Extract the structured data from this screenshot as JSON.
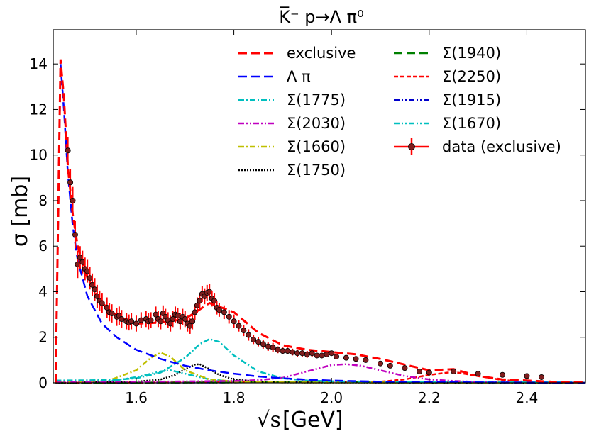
{
  "chart_data": {
    "type": "line",
    "title": "K̅⁻ p→Λ π⁰",
    "xlabel": "[GeV]",
    "xlabel_sqrt": "√s",
    "ylabel": "σ [mb]",
    "xlim": [
      1.43,
      2.52
    ],
    "ylim": [
      0,
      15.5
    ],
    "xticks": [
      1.6,
      1.8,
      2.0,
      2.2,
      2.4
    ],
    "yticks": [
      0,
      2,
      4,
      6,
      8,
      10,
      12,
      14
    ],
    "legend_position": "top-right",
    "series": [
      {
        "key": "exclusive",
        "name": "exclusive",
        "color": "#ff0000",
        "style": "dashed",
        "x": [
          1.435,
          1.445,
          1.452,
          1.46,
          1.47,
          1.48,
          1.5,
          1.53,
          1.56,
          1.6,
          1.65,
          1.7,
          1.75,
          1.8,
          1.85,
          1.9,
          1.95,
          2.0,
          2.05,
          2.1,
          2.15,
          2.2,
          2.25,
          2.3,
          2.35,
          2.4,
          2.45,
          2.52
        ],
        "y": [
          0,
          14.2,
          12.5,
          9.5,
          7.4,
          6.0,
          4.6,
          3.5,
          2.95,
          2.6,
          2.65,
          2.8,
          3.5,
          3.1,
          2.2,
          1.65,
          1.45,
          1.35,
          1.25,
          1.05,
          0.8,
          0.55,
          0.6,
          0.3,
          0.15,
          0.1,
          0.05,
          0.03
        ]
      },
      {
        "key": "lambda_pi",
        "name": "Λ π",
        "color": "#0000ff",
        "style": "dashed",
        "x": [
          1.435,
          1.445,
          1.452,
          1.46,
          1.47,
          1.48,
          1.5,
          1.53,
          1.56,
          1.6,
          1.65,
          1.7,
          1.75,
          1.8,
          1.85,
          1.9,
          1.95,
          2.0,
          2.1,
          2.2,
          2.3,
          2.4,
          2.52
        ],
        "y": [
          0,
          14.0,
          12.0,
          9.2,
          6.9,
          5.4,
          3.8,
          2.6,
          2.0,
          1.45,
          1.05,
          0.75,
          0.55,
          0.4,
          0.28,
          0.2,
          0.14,
          0.1,
          0.05,
          0.03,
          0.02,
          0.01,
          0.0
        ]
      },
      {
        "key": "s1775",
        "name": "Σ(1775)",
        "color": "#00bfbf",
        "style": "dashdot",
        "x": [
          1.435,
          1.55,
          1.6,
          1.65,
          1.7,
          1.73,
          1.75,
          1.77,
          1.8,
          1.85,
          1.9,
          1.95,
          2.0,
          2.1,
          2.52
        ],
        "y": [
          0.1,
          0.12,
          0.2,
          0.45,
          1.1,
          1.7,
          1.92,
          1.8,
          1.2,
          0.5,
          0.2,
          0.1,
          0.07,
          0.05,
          0.03
        ]
      },
      {
        "key": "s2030",
        "name": "Σ(2030)",
        "color": "#bf00bf",
        "style": "dashdotdot",
        "x": [
          1.435,
          1.8,
          1.85,
          1.9,
          1.95,
          2.0,
          2.03,
          2.06,
          2.1,
          2.15,
          2.2,
          2.25,
          2.3,
          2.52
        ],
        "y": [
          0.02,
          0.08,
          0.12,
          0.22,
          0.5,
          0.78,
          0.82,
          0.75,
          0.55,
          0.3,
          0.15,
          0.08,
          0.04,
          0.02
        ]
      },
      {
        "key": "s1660",
        "name": "Σ(1660)",
        "color": "#bfbf00",
        "style": "dashdot",
        "x": [
          1.435,
          1.5,
          1.55,
          1.6,
          1.63,
          1.65,
          1.67,
          1.7,
          1.75,
          1.8,
          1.9,
          2.52
        ],
        "y": [
          0.02,
          0.06,
          0.15,
          0.55,
          1.1,
          1.32,
          1.15,
          0.55,
          0.15,
          0.06,
          0.02,
          0.0
        ]
      },
      {
        "key": "s1750",
        "name": "Σ(1750)",
        "color": "#000000",
        "style": "dotted",
        "x": [
          1.435,
          1.6,
          1.65,
          1.68,
          1.7,
          1.72,
          1.73,
          1.75,
          1.77,
          1.8,
          1.85,
          1.9,
          2.52
        ],
        "y": [
          0.0,
          0.05,
          0.15,
          0.35,
          0.6,
          0.8,
          0.82,
          0.6,
          0.35,
          0.15,
          0.05,
          0.02,
          0.0
        ]
      },
      {
        "key": "s1940",
        "name": "Σ(1940)",
        "color": "#008000",
        "style": "dashed",
        "x": [
          1.435,
          1.8,
          1.9,
          1.94,
          2.0,
          2.1,
          2.52
        ],
        "y": [
          0.0,
          0.02,
          0.05,
          0.06,
          0.05,
          0.02,
          0.0
        ]
      },
      {
        "key": "s2250",
        "name": "Σ(2250)",
        "color": "#ff0000",
        "style": "shortdash",
        "x": [
          1.435,
          2.1,
          2.15,
          2.2,
          2.25,
          2.3,
          2.35,
          2.4,
          2.52
        ],
        "y": [
          0.0,
          0.05,
          0.15,
          0.35,
          0.48,
          0.3,
          0.12,
          0.04,
          0.0
        ]
      },
      {
        "key": "s1915",
        "name": "Σ(1915)",
        "color": "#0000cc",
        "style": "dashdotdot",
        "x": [
          1.435,
          1.8,
          1.9,
          1.92,
          2.0,
          2.1,
          2.52
        ],
        "y": [
          0.0,
          0.02,
          0.04,
          0.05,
          0.04,
          0.02,
          0.0
        ]
      },
      {
        "key": "s1670",
        "name": "Σ(1670)",
        "color": "#00bfbf",
        "style": "dashdotdot",
        "x": [
          1.435,
          1.55,
          1.6,
          1.65,
          1.67,
          1.7,
          1.75,
          1.8,
          2.52
        ],
        "y": [
          0.02,
          0.08,
          0.25,
          0.5,
          0.55,
          0.4,
          0.15,
          0.05,
          0.0
        ]
      }
    ],
    "data_points": {
      "name": "data (exclusive)",
      "color": "#ff0000",
      "marker_color": "#7f1d1d",
      "x": [
        1.46,
        1.465,
        1.47,
        1.475,
        1.48,
        1.485,
        1.49,
        1.495,
        1.5,
        1.505,
        1.51,
        1.515,
        1.52,
        1.525,
        1.53,
        1.54,
        1.545,
        1.55,
        1.56,
        1.565,
        1.57,
        1.58,
        1.585,
        1.59,
        1.6,
        1.61,
        1.62,
        1.625,
        1.63,
        1.64,
        1.645,
        1.65,
        1.655,
        1.66,
        1.665,
        1.67,
        1.675,
        1.68,
        1.685,
        1.69,
        1.695,
        1.7,
        1.705,
        1.71,
        1.715,
        1.72,
        1.725,
        1.73,
        1.735,
        1.74,
        1.745,
        1.75,
        1.755,
        1.76,
        1.765,
        1.77,
        1.78,
        1.79,
        1.8,
        1.81,
        1.82,
        1.83,
        1.84,
        1.85,
        1.86,
        1.87,
        1.88,
        1.89,
        1.9,
        1.91,
        1.92,
        1.93,
        1.94,
        1.95,
        1.96,
        1.97,
        1.98,
        1.99,
        2.0,
        2.01,
        2.03,
        2.05,
        2.07,
        2.1,
        2.12,
        2.15,
        2.18,
        2.2,
        2.25,
        2.3,
        2.35,
        2.4,
        2.43
      ],
      "y": [
        10.2,
        8.8,
        8.0,
        6.5,
        5.2,
        5.5,
        5.3,
        5.0,
        4.9,
        4.6,
        4.3,
        4.1,
        3.8,
        3.6,
        3.5,
        3.3,
        3.1,
        3.05,
        2.9,
        2.95,
        2.8,
        2.7,
        2.65,
        2.7,
        2.6,
        2.75,
        2.8,
        2.7,
        2.75,
        3.0,
        2.8,
        2.7,
        3.05,
        2.9,
        2.75,
        2.6,
        2.8,
        3.0,
        2.95,
        2.7,
        2.9,
        2.8,
        2.6,
        2.5,
        2.7,
        3.1,
        3.4,
        3.6,
        3.9,
        3.8,
        3.95,
        4.0,
        3.7,
        3.6,
        3.3,
        3.2,
        3.1,
        2.9,
        2.7,
        2.5,
        2.3,
        2.1,
        1.9,
        1.8,
        1.7,
        1.6,
        1.55,
        1.45,
        1.4,
        1.4,
        1.35,
        1.3,
        1.3,
        1.25,
        1.3,
        1.2,
        1.2,
        1.25,
        1.3,
        1.15,
        1.1,
        1.05,
        1.0,
        0.85,
        0.75,
        0.65,
        0.5,
        0.45,
        0.5,
        0.4,
        0.35,
        0.3,
        0.25
      ],
      "err": [
        0.6,
        0.6,
        0.6,
        0.6,
        0.6,
        0.5,
        0.5,
        0.5,
        0.5,
        0.5,
        0.5,
        0.5,
        0.5,
        0.45,
        0.45,
        0.45,
        0.4,
        0.4,
        0.4,
        0.4,
        0.4,
        0.35,
        0.35,
        0.35,
        0.35,
        0.35,
        0.35,
        0.35,
        0.35,
        0.35,
        0.35,
        0.35,
        0.35,
        0.35,
        0.35,
        0.35,
        0.35,
        0.35,
        0.35,
        0.35,
        0.35,
        0.35,
        0.35,
        0.35,
        0.35,
        0.35,
        0.35,
        0.35,
        0.35,
        0.35,
        0.35,
        0.35,
        0.35,
        0.35,
        0.3,
        0.3,
        0.3,
        0.3,
        0.3,
        0.25,
        0.25,
        0.25,
        0.2,
        0.2,
        0.2,
        0.2,
        0.2,
        0.15,
        0.15,
        0.15,
        0.15,
        0.15,
        0.15,
        0.15,
        0.15,
        0.1,
        0.1,
        0.1,
        0.1,
        0.1,
        0.1,
        0.1,
        0.1,
        0.1,
        0.1,
        0.1,
        0.1,
        0.1,
        0.1,
        0.1,
        0.1,
        0.1,
        0.1
      ]
    }
  }
}
